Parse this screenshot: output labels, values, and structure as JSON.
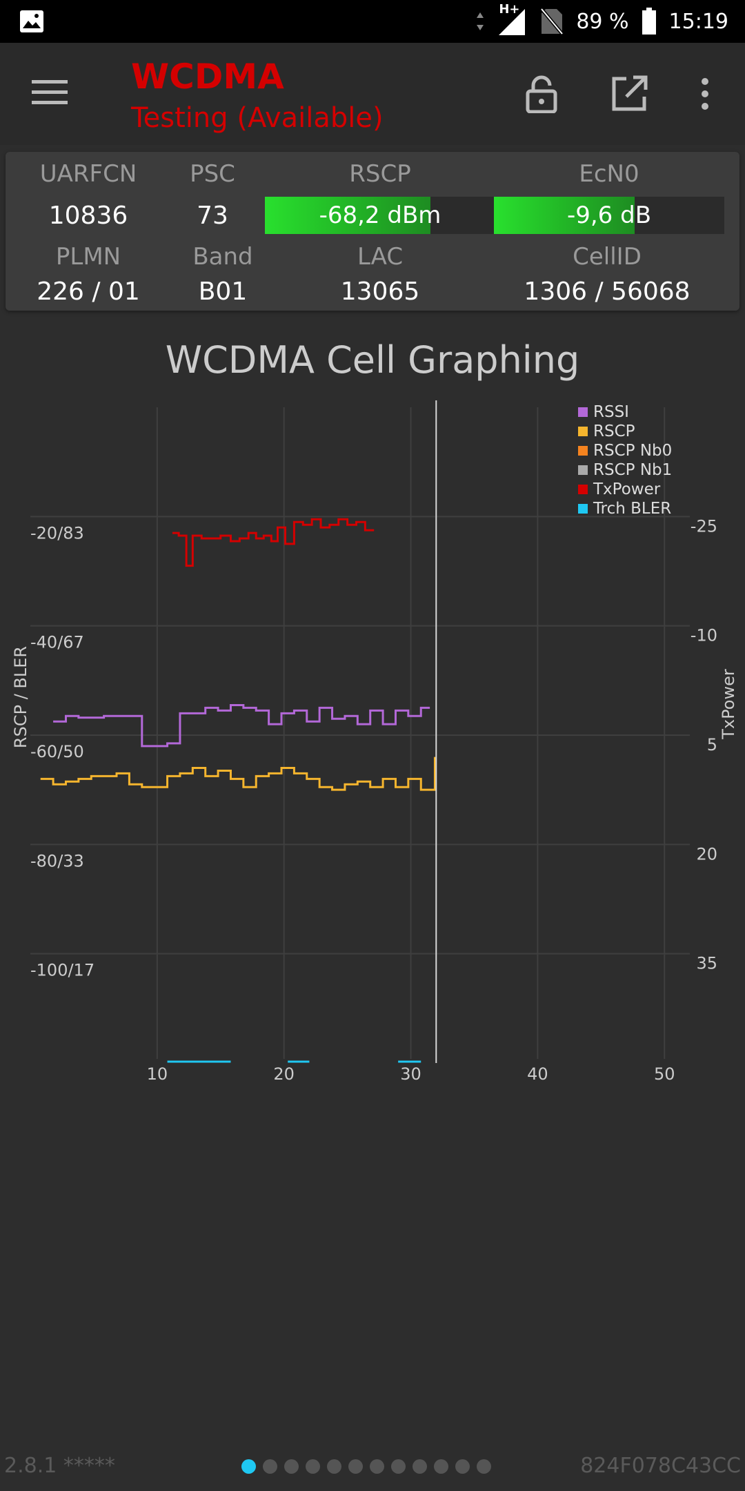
{
  "status_bar": {
    "network": "H+",
    "battery": "89 %",
    "time": "15:19"
  },
  "app_bar": {
    "title": "WCDMA",
    "subtitle": "Testing (Available)",
    "icons": [
      "menu-icon",
      "lock-icon",
      "open-external-icon",
      "more-vert-icon"
    ]
  },
  "cell_info": {
    "uarfcn_label": "UARFCN",
    "uarfcn": "10836",
    "psc_label": "PSC",
    "psc": "73",
    "rscp_label": "RSCP",
    "rscp": "-68,2 dBm",
    "rscp_fill": 0.72,
    "ecn0_label": "EcN0",
    "ecn0": "-9,6 dB",
    "ecn0_fill": 0.61,
    "plmn_label": "PLMN",
    "plmn": "226 / 01",
    "band_label": "Band",
    "band": "B01",
    "lac_label": "LAC",
    "lac": "13065",
    "cellid_label": "CellID",
    "cellid": "1306 / 56068"
  },
  "chart_title": "WCDMA Cell Graphing",
  "chart_data": {
    "type": "line",
    "ylabel": "RSCP / BLER",
    "y2label": "TxPower",
    "x_ticks": [
      "10",
      "20",
      "30",
      "40",
      "50"
    ],
    "xlim": [
      0,
      52
    ],
    "left_ticks": [
      "-20/83",
      "-40/67",
      "-60/50",
      "-80/33",
      "-100/17"
    ],
    "right_ticks": [
      "-25",
      "-10",
      "5",
      "20",
      "35"
    ],
    "left_tick_values": [
      -20,
      -40,
      -60,
      -80,
      -100
    ],
    "ylim": [
      -120,
      0
    ],
    "cursor_x": 32,
    "legend": [
      {
        "name": "RSSI",
        "color": "#b368d8"
      },
      {
        "name": "RSCP",
        "color": "#f5b52e"
      },
      {
        "name": "RSCP Nb0",
        "color": "#f5831f"
      },
      {
        "name": "RSCP Nb1",
        "color": "#aaaaaa"
      },
      {
        "name": "TxPower",
        "color": "#d40000"
      },
      {
        "name": "Trch BLER",
        "color": "#1fc8f2"
      }
    ],
    "series": [
      {
        "name": "RSSI",
        "color": "#b368d8",
        "x": [
          1.8,
          2.8,
          3.8,
          4.8,
          5.8,
          6.8,
          7.8,
          8.8,
          9.8,
          10.8,
          11.8,
          12.8,
          13.8,
          14.8,
          15.8,
          16.8,
          17.8,
          18.8,
          19.8,
          20.8,
          21.8,
          22.8,
          23.8,
          24.8,
          25.8,
          26.8,
          27.8,
          28.8,
          29.8,
          30.8,
          31.5
        ],
        "y": [
          -57.5,
          -56.5,
          -56.8,
          -56.8,
          -56.5,
          -56.5,
          -56.5,
          -62,
          -62,
          -61.5,
          -56,
          -56,
          -55,
          -55.5,
          -54.5,
          -55,
          -55.5,
          -58,
          -56,
          -55.5,
          -57.5,
          -55,
          -57,
          -56.5,
          -58,
          -55.5,
          -58,
          -55.5,
          -56.5,
          -55,
          -55
        ]
      },
      {
        "name": "RSCP",
        "color": "#f5b52e",
        "x": [
          0.8,
          1.8,
          2.8,
          3.8,
          4.8,
          5.8,
          6.8,
          7.8,
          8.8,
          9.8,
          10.8,
          11.8,
          12.8,
          13.8,
          14.8,
          15.8,
          16.8,
          17.8,
          18.8,
          19.8,
          20.8,
          21.8,
          22.8,
          23.8,
          24.8,
          25.8,
          26.8,
          27.8,
          28.8,
          29.8,
          30.8,
          31.9
        ],
        "y": [
          -68,
          -69,
          -68.5,
          -68,
          -67.5,
          -67.5,
          -67,
          -69,
          -69.5,
          -69.5,
          -67.5,
          -67,
          -66,
          -67.5,
          -66.5,
          -68,
          -69.5,
          -67.5,
          -67,
          -66,
          -67,
          -68,
          -69.5,
          -70,
          -69,
          -68.5,
          -69.5,
          -68,
          -69.5,
          -68,
          -70,
          -64
        ]
      },
      {
        "name": "TxPower",
        "color": "#d40000",
        "x": [
          11.2,
          11.7,
          12.3,
          12.8,
          13.5,
          14.3,
          15,
          15.8,
          16.5,
          17.2,
          17.8,
          18.4,
          19,
          19.5,
          20.1,
          20.8,
          21.5,
          22.2,
          22.9,
          23.6,
          24.3,
          25,
          25.7,
          26.4,
          27.1
        ],
        "y": [
          -23,
          -23.5,
          -29,
          -23.5,
          -24,
          -24,
          -23.5,
          -24.5,
          -24,
          -23,
          -24,
          -23.5,
          -24.5,
          -22,
          -25,
          -21,
          -21.5,
          -20.5,
          -22,
          -21.5,
          -20.5,
          -21.5,
          -21,
          -22.5,
          -22.5
        ]
      },
      {
        "name": "Trch BLER",
        "color": "#1fc8f2",
        "segments": [
          [
            10.8,
            15.8
          ],
          [
            20.3,
            22.0
          ],
          [
            29.0,
            30.8
          ]
        ]
      }
    ]
  },
  "footer": {
    "version": "2.8.1 *****",
    "device_id": "824F078C43CC",
    "page_count": 12,
    "active_page": 0
  }
}
